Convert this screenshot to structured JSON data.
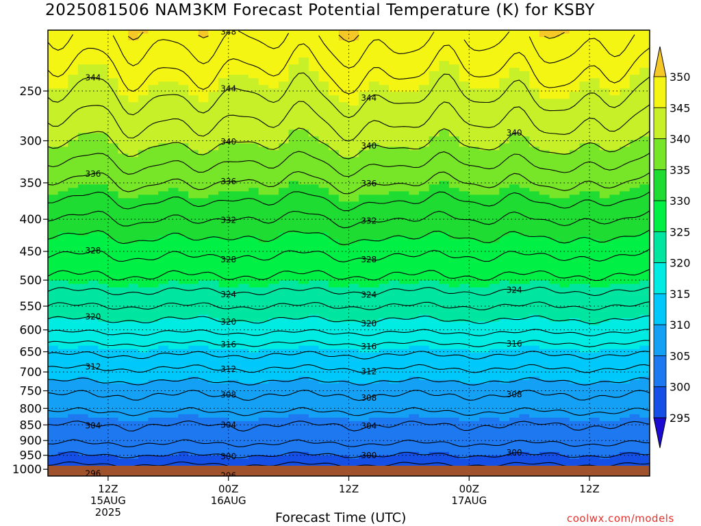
{
  "title": "2025081506 NAM3KM Forecast Potential Temperature (K) for KSBY",
  "xlabel": "Forecast Time (UTC)",
  "credit": "coolwx.com/models",
  "chart_data": {
    "type": "heatmap",
    "title": "2025081506 NAM3KM Forecast Potential Temperature (K) for KSBY",
    "xlabel": "Forecast Time (UTC)",
    "ylabel": "",
    "y_axis": "pressure (hPa), log scale, inverted",
    "ylim": [
      1025,
      200
    ],
    "xlim_hours": [
      6,
      66
    ],
    "y_ticks": [
      250,
      300,
      350,
      400,
      450,
      500,
      550,
      600,
      650,
      700,
      750,
      800,
      850,
      900,
      950,
      1000
    ],
    "x_ticks": [
      {
        "hour": 12,
        "lines": [
          "12Z",
          "15AUG",
          "2025"
        ]
      },
      {
        "hour": 24,
        "lines": [
          "00Z",
          "16AUG"
        ]
      },
      {
        "hour": 36,
        "lines": [
          "12Z"
        ]
      },
      {
        "hour": 48,
        "lines": [
          "00Z",
          "17AUG"
        ]
      },
      {
        "hour": 60,
        "lines": [
          "12Z"
        ]
      }
    ],
    "colorbar": {
      "levels": [
        295,
        300,
        305,
        310,
        315,
        320,
        325,
        330,
        335,
        340,
        345,
        350
      ],
      "colors": [
        "#1a0ad2",
        "#0a32d8",
        "#1450e6",
        "#1e78f0",
        "#14a0f5",
        "#00c8fa",
        "#00ebe1",
        "#00e6a0",
        "#00f046",
        "#1edc32",
        "#78e628",
        "#c8f028",
        "#f5f514",
        "#f5c828"
      ]
    },
    "contour_interval": 2,
    "contour_labels": [
      348,
      344,
      344,
      344,
      340,
      340,
      340,
      336,
      336,
      336,
      332,
      332,
      328,
      328,
      328,
      324,
      324,
      324,
      320,
      320,
      320,
      316,
      316,
      316,
      312,
      312,
      312,
      308,
      308,
      308,
      304,
      304,
      304,
      300,
      300,
      300,
      296,
      296
    ],
    "profile": [
      {
        "p": 1000,
        "theta": 297
      },
      {
        "p": 950,
        "theta": 300
      },
      {
        "p": 900,
        "theta": 302.5
      },
      {
        "p": 850,
        "theta": 304
      },
      {
        "p": 800,
        "theta": 306.5
      },
      {
        "p": 750,
        "theta": 308.5
      },
      {
        "p": 700,
        "theta": 311.5
      },
      {
        "p": 650,
        "theta": 314.5
      },
      {
        "p": 600,
        "theta": 318.5
      },
      {
        "p": 550,
        "theta": 322
      },
      {
        "p": 500,
        "theta": 325.5
      },
      {
        "p": 450,
        "theta": 328.5
      },
      {
        "p": 400,
        "theta": 332
      },
      {
        "p": 350,
        "theta": 336
      },
      {
        "p": 300,
        "theta": 340.5
      },
      {
        "p": 250,
        "theta": 344.5
      },
      {
        "p": 200,
        "theta": 349
      }
    ],
    "grid": true,
    "legend_position": "right"
  }
}
